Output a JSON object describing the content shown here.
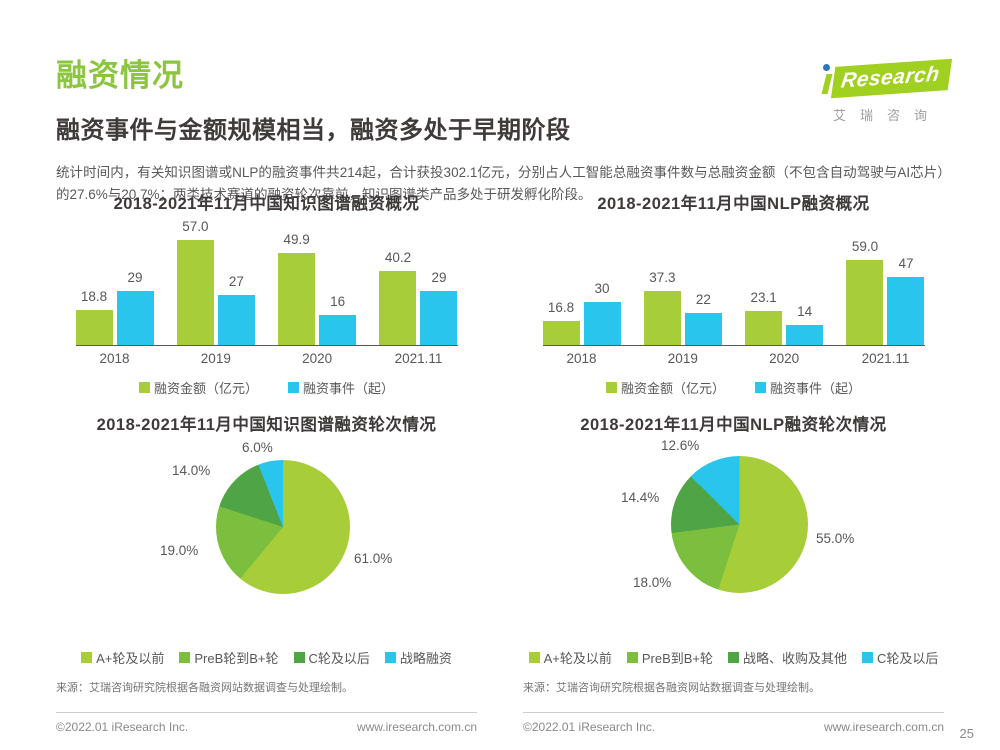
{
  "page": {
    "title": "融资情况",
    "subtitle": "融资事件与金额规模相当，融资多处于早期阶段",
    "paragraph": "统计时间内，有关知识图谱或NLP的融资事件共214起，合计获投302.1亿元，分别占人工智能总融资事件数与总融资金额（不包含自动驾驶与AI芯片）的27.6%与20.7%；两类技术赛道的融资轮次靠前，知识图谱类产品多处于研发孵化阶段。",
    "page_number": "25"
  },
  "logo": {
    "brand": "Research",
    "brand_cn": "艾瑞咨询",
    "green": "#a0d020",
    "dot_blue": "#2e75b6"
  },
  "colors": {
    "title_green": "#8cc63f",
    "bar_green": "#a7ce39",
    "bar_blue": "#29c5ec",
    "pie_mid_green": "#7cbf3f",
    "pie_dark_green": "#4fa546",
    "text_dark": "#3e3a39",
    "text_body": "#595757"
  },
  "footer": {
    "source": "来源：艾瑞咨询研究院根据各融资网站数据调查与处理绘制。",
    "copyright": "©2022.01 iResearch Inc.",
    "website": "www.iresearch.com.cn"
  },
  "chart_data": [
    {
      "type": "bar",
      "title": "2018-2021年11月中国知识图谱融资概况",
      "categories": [
        "2018",
        "2019",
        "2020",
        "2021.11"
      ],
      "series": [
        {
          "name": "融资金额（亿元）",
          "color": "#a7ce39",
          "values": [
            18.8,
            57.0,
            49.9,
            40.2
          ],
          "labels": [
            "18.8",
            "57.0",
            "49.9",
            "40.2"
          ]
        },
        {
          "name": "融资事件（起）",
          "color": "#29c5ec",
          "values": [
            29,
            27,
            16,
            29
          ],
          "labels": [
            "29",
            "27",
            "16",
            "29"
          ]
        }
      ],
      "ylim": [
        0,
        57
      ],
      "grid": false,
      "legend_position": "bottom"
    },
    {
      "type": "bar",
      "title": "2018-2021年11月中国NLP融资概况",
      "categories": [
        "2018",
        "2019",
        "2020",
        "2021.11"
      ],
      "series": [
        {
          "name": "融资金额（亿元）",
          "color": "#a7ce39",
          "values": [
            16.8,
            37.3,
            23.1,
            59.0
          ],
          "labels": [
            "16.8",
            "37.3",
            "23.1",
            "59.0"
          ]
        },
        {
          "name": "融资事件（起）",
          "color": "#29c5ec",
          "values": [
            30,
            22,
            14,
            47
          ],
          "labels": [
            "30",
            "22",
            "14",
            "47"
          ]
        }
      ],
      "ylim": [
        0,
        59
      ],
      "grid": false,
      "legend_position": "bottom"
    },
    {
      "type": "pie",
      "title": "2018-2021年11月中国知识图谱融资轮次情况",
      "slices": [
        {
          "label": "A+轮及以前",
          "value": 61.0,
          "display": "61.0%",
          "color": "#a7ce39"
        },
        {
          "label": "PreB轮到B+轮",
          "value": 19.0,
          "display": "19.0%",
          "color": "#7cbf3f"
        },
        {
          "label": "C轮及以后",
          "value": 14.0,
          "display": "14.0%",
          "color": "#4fa546"
        },
        {
          "label": "战略融资",
          "value": 6.0,
          "display": "6.0%",
          "color": "#29c5ec"
        }
      ],
      "start_angle": "12-o-clock-clockwise",
      "legend_position": "bottom"
    },
    {
      "type": "pie",
      "title": "2018-2021年11月中国NLP融资轮次情况",
      "slices": [
        {
          "label": "A+轮及以前",
          "value": 55.0,
          "display": "55.0%",
          "color": "#a7ce39"
        },
        {
          "label": "PreB到B+轮",
          "value": 18.0,
          "display": "18.0%",
          "color": "#7cbf3f"
        },
        {
          "label": "战略、收购及其他",
          "value": 14.4,
          "display": "14.4%",
          "color": "#4fa546"
        },
        {
          "label": "C轮及以后",
          "value": 12.6,
          "display": "12.6%",
          "color": "#29c5ec"
        }
      ],
      "start_angle": "12-o-clock-clockwise",
      "legend_position": "bottom"
    }
  ]
}
